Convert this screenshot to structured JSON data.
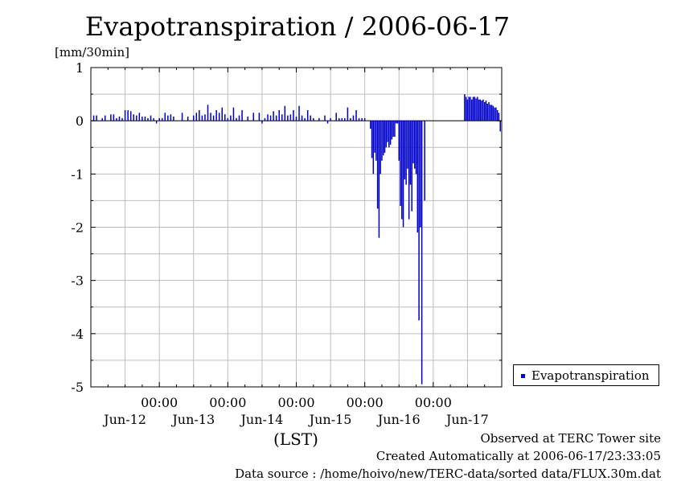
{
  "chart_data": {
    "type": "bar",
    "title": "Evapotranspiration / 2006-06-17",
    "ylabel": "[mm/30min]",
    "xlabel": "(LST)",
    "ylim": [
      -5,
      1
    ],
    "xlim_hours": [
      0,
      144
    ],
    "y_ticks": [
      "1",
      "0",
      "-1",
      "-2",
      "-3",
      "-4",
      "-5"
    ],
    "x_time_ticks": [
      "00:00",
      "00:00",
      "00:00",
      "00:00",
      "00:00"
    ],
    "x_date_labels": [
      "Jun-12",
      "Jun-13",
      "Jun-14",
      "Jun-15",
      "Jun-16",
      "Jun-17"
    ],
    "grid": true,
    "legend_position": "bottom-right",
    "series": [
      {
        "name": "Evapotranspiration",
        "color": "#0000cc",
        "points": [
          [
            1,
            0.1
          ],
          [
            2,
            0.1
          ],
          [
            4,
            0.05
          ],
          [
            5,
            0.1
          ],
          [
            7,
            0.12
          ],
          [
            8,
            0.12
          ],
          [
            9,
            0.05
          ],
          [
            10,
            0.08
          ],
          [
            11,
            0.05
          ],
          [
            12,
            0.2
          ],
          [
            13,
            0.2
          ],
          [
            14,
            0.18
          ],
          [
            15,
            0.12
          ],
          [
            16,
            0.1
          ],
          [
            17,
            0.15
          ],
          [
            18,
            0.08
          ],
          [
            19,
            0.08
          ],
          [
            20,
            0.05
          ],
          [
            21,
            0.1
          ],
          [
            22,
            0.05
          ],
          [
            23,
            -0.05
          ],
          [
            24,
            0.05
          ],
          [
            25,
            0.05
          ],
          [
            26,
            0.15
          ],
          [
            27,
            0.1
          ],
          [
            28,
            0.12
          ],
          [
            29,
            0.08
          ],
          [
            32,
            0.15
          ],
          [
            34,
            0.08
          ],
          [
            36,
            0.1
          ],
          [
            37,
            0.15
          ],
          [
            38,
            0.2
          ],
          [
            39,
            0.1
          ],
          [
            40,
            0.12
          ],
          [
            41,
            0.3
          ],
          [
            42,
            0.15
          ],
          [
            43,
            0.1
          ],
          [
            44,
            0.2
          ],
          [
            45,
            0.15
          ],
          [
            46,
            0.25
          ],
          [
            47,
            0.12
          ],
          [
            48,
            0.05
          ],
          [
            49,
            0.1
          ],
          [
            50,
            0.25
          ],
          [
            51,
            0.05
          ],
          [
            52,
            0.1
          ],
          [
            53,
            0.2
          ],
          [
            55,
            0.08
          ],
          [
            57,
            0.15
          ],
          [
            59,
            0.15
          ],
          [
            60,
            -0.05
          ],
          [
            61,
            0.05
          ],
          [
            62,
            0.12
          ],
          [
            63,
            0.1
          ],
          [
            64,
            0.18
          ],
          [
            65,
            0.1
          ],
          [
            66,
            0.2
          ],
          [
            67,
            0.12
          ],
          [
            68,
            0.28
          ],
          [
            69,
            0.1
          ],
          [
            70,
            0.12
          ],
          [
            71,
            0.2
          ],
          [
            72,
            0.08
          ],
          [
            73,
            0.28
          ],
          [
            74,
            0.1
          ],
          [
            75,
            0.05
          ],
          [
            76,
            0.2
          ],
          [
            77,
            0.1
          ],
          [
            78,
            0.05
          ],
          [
            80,
            0.05
          ],
          [
            82,
            0.1
          ],
          [
            83,
            -0.05
          ],
          [
            84,
            0.05
          ],
          [
            86,
            0.15
          ],
          [
            87,
            0.05
          ],
          [
            88,
            0.05
          ],
          [
            89,
            0.05
          ],
          [
            90,
            0.25
          ],
          [
            91,
            0.05
          ],
          [
            92,
            0.1
          ],
          [
            93,
            0.2
          ],
          [
            94,
            0.05
          ],
          [
            95,
            0.05
          ],
          [
            96,
            0.05
          ],
          [
            98,
            -0.15
          ],
          [
            98.5,
            -0.7
          ],
          [
            99,
            -1.0
          ],
          [
            99.5,
            -0.6
          ],
          [
            100,
            -0.75
          ],
          [
            100.5,
            -1.65
          ],
          [
            101,
            -2.2
          ],
          [
            101.5,
            -1.0
          ],
          [
            102,
            -0.75
          ],
          [
            102.5,
            -0.65
          ],
          [
            103,
            -0.6
          ],
          [
            103.5,
            -0.5
          ],
          [
            104,
            -0.4
          ],
          [
            104.5,
            -0.5
          ],
          [
            105,
            -0.45
          ],
          [
            105.5,
            -0.35
          ],
          [
            106,
            -0.3
          ],
          [
            106.5,
            -0.3
          ],
          [
            107,
            -0.05
          ],
          [
            107.5,
            -0.05
          ],
          [
            108,
            -0.75
          ],
          [
            108.5,
            -1.6
          ],
          [
            109,
            -1.85
          ],
          [
            109.5,
            -2.0
          ],
          [
            110,
            -1.1
          ],
          [
            110.5,
            -1.2
          ],
          [
            111,
            -0.9
          ],
          [
            111.5,
            -1.85
          ],
          [
            112,
            -1.2
          ],
          [
            112.5,
            -1.7
          ],
          [
            113,
            -0.8
          ],
          [
            113.5,
            -0.9
          ],
          [
            114,
            -1.0
          ],
          [
            114.5,
            -2.1
          ],
          [
            115,
            -3.75
          ],
          [
            115.5,
            -2.0
          ],
          [
            116,
            -4.95
          ],
          [
            117,
            -1.5
          ],
          [
            131,
            0.5
          ],
          [
            131.5,
            0.45
          ],
          [
            132,
            0.4
          ],
          [
            132.5,
            0.45
          ],
          [
            133,
            0.45
          ],
          [
            133.5,
            0.4
          ],
          [
            134,
            0.45
          ],
          [
            134.5,
            0.45
          ],
          [
            135,
            0.42
          ],
          [
            135.5,
            0.45
          ],
          [
            136,
            0.4
          ],
          [
            136.5,
            0.4
          ],
          [
            137,
            0.38
          ],
          [
            137.5,
            0.4
          ],
          [
            138,
            0.35
          ],
          [
            138.5,
            0.38
          ],
          [
            139,
            0.32
          ],
          [
            139.5,
            0.35
          ],
          [
            140,
            0.3
          ],
          [
            140.5,
            0.3
          ],
          [
            141,
            0.28
          ],
          [
            141.5,
            0.25
          ],
          [
            142,
            0.25
          ],
          [
            142.5,
            0.2
          ],
          [
            143,
            0.15
          ],
          [
            143.5,
            -0.2
          ]
        ]
      }
    ]
  },
  "footer": {
    "observed": "Observed at TERC Tower site",
    "created": "Created Automatically at 2006-06-17/23:33:05",
    "source": "Data source : /home/hoivo/new/TERC-data/sorted  data/FLUX.30m.dat"
  }
}
